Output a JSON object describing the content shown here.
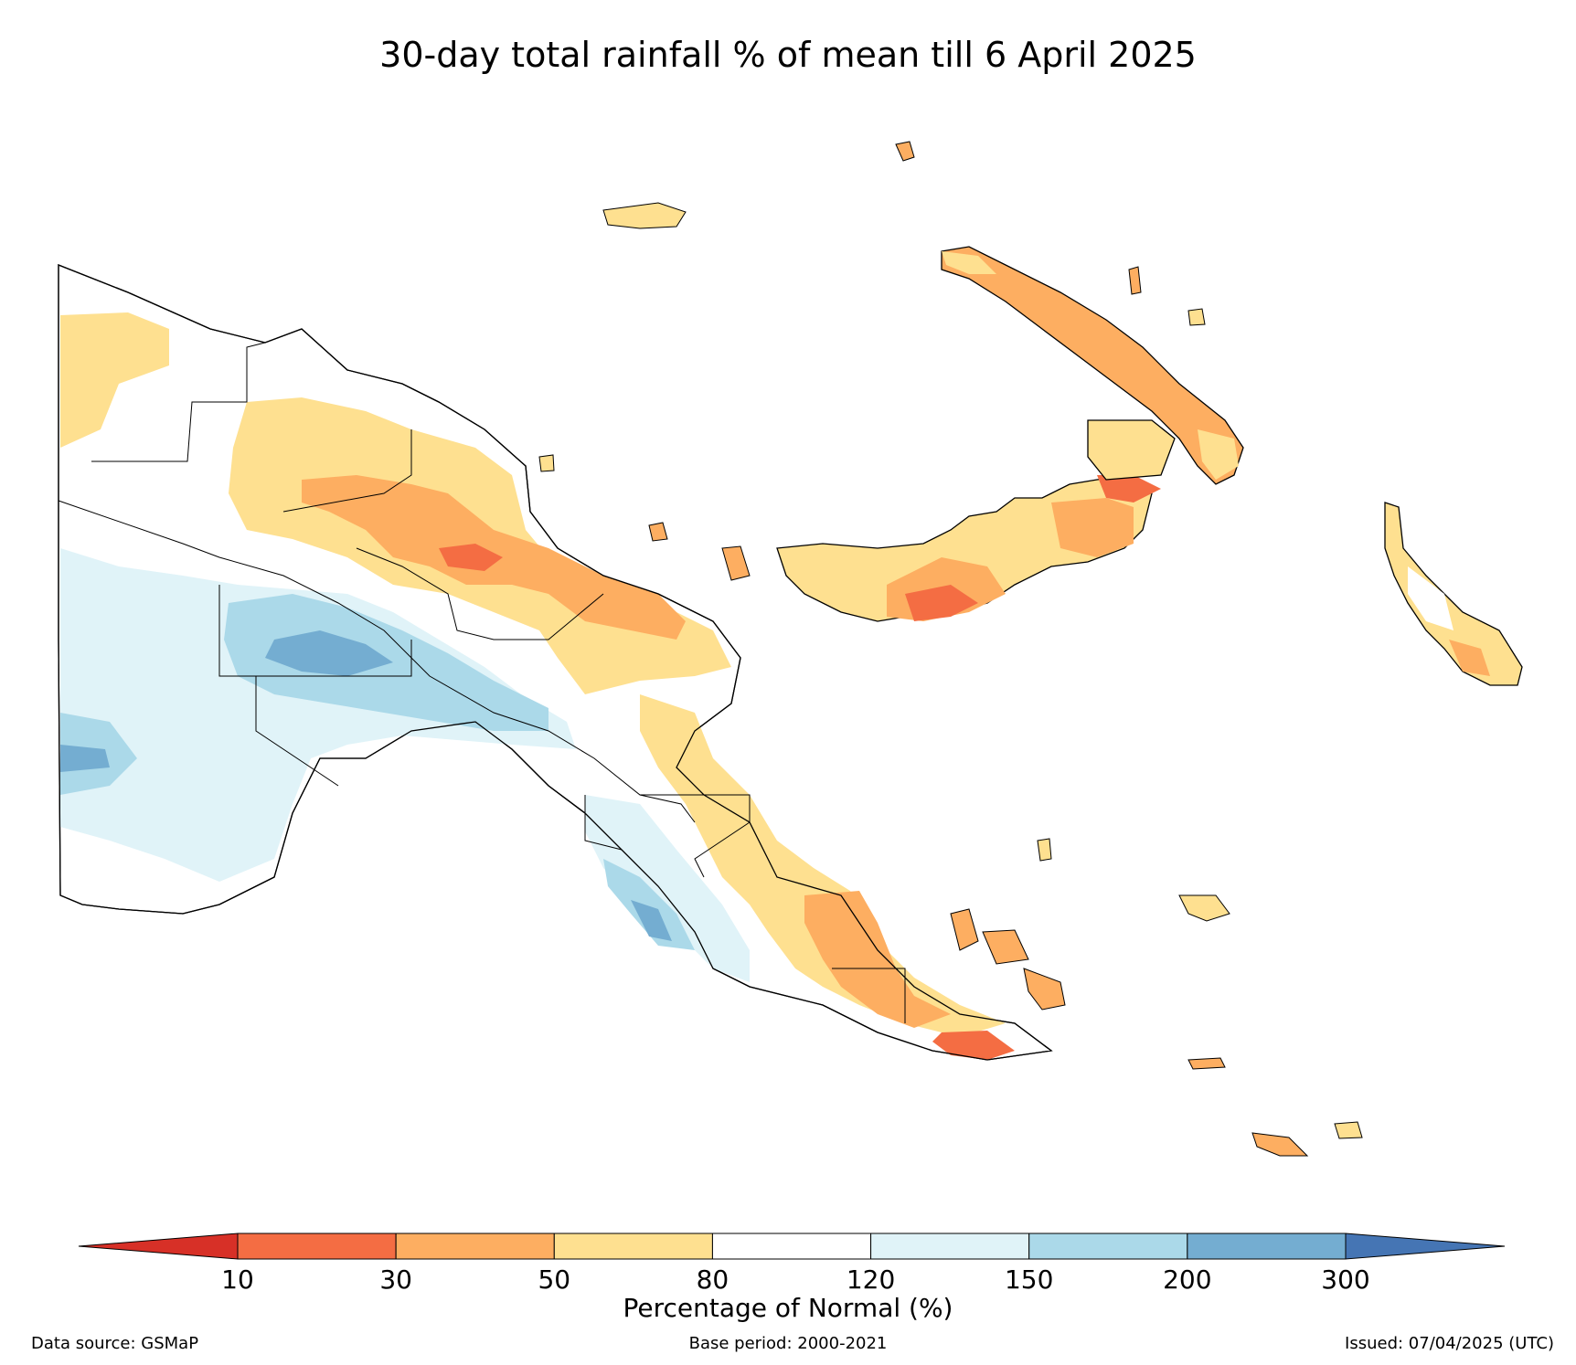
{
  "title": "30-day total rainfall % of mean till 6 April 2025",
  "colorbar": {
    "title": "Percentage of Normal (%)",
    "ticks": [
      "10",
      "30",
      "50",
      "80",
      "120",
      "150",
      "200",
      "300"
    ],
    "colors": [
      "#d73027",
      "#f46d43",
      "#fdae61",
      "#fee090",
      "#ffffff",
      "#e0f3f8",
      "#abd9e9",
      "#74add1",
      "#4575b4"
    ]
  },
  "footer": {
    "source": "Data source: GSMaP",
    "base_period": "Base period: 2000-2021",
    "issued": "Issued: 07/04/2025 (UTC)"
  }
}
